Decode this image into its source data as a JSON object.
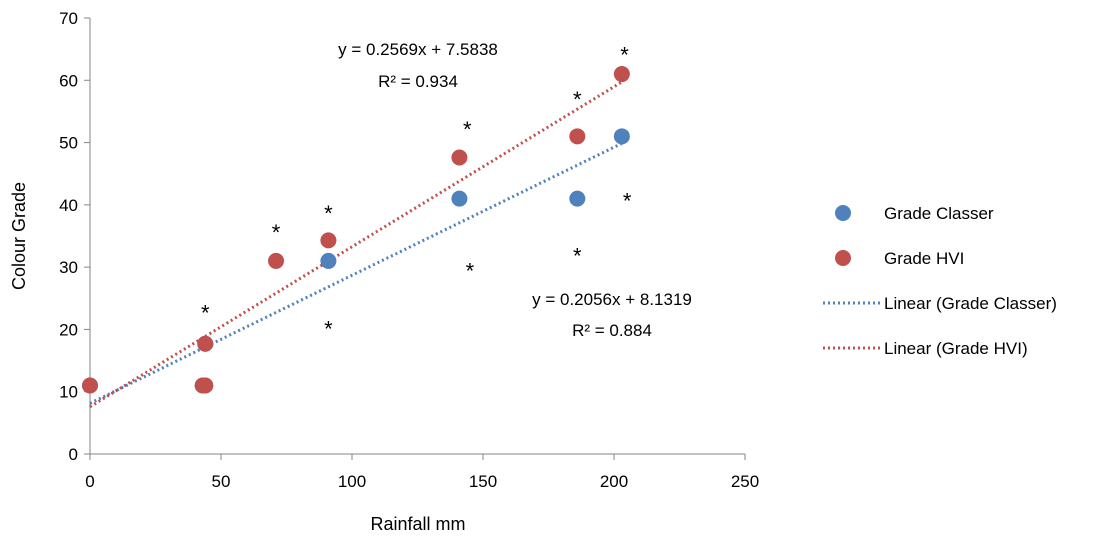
{
  "chart_data": {
    "type": "scatter",
    "xlabel": "Rainfall mm",
    "ylabel": "Colour Grade",
    "xlim": [
      0,
      250
    ],
    "ylim": [
      0,
      70
    ],
    "xticks": [
      0,
      50,
      100,
      150,
      200,
      250
    ],
    "yticks": [
      0,
      10,
      20,
      30,
      40,
      50,
      60,
      70
    ],
    "grid": false,
    "legend_position": "right",
    "series": [
      {
        "name": "Grade Classer",
        "color": "#4F81BD",
        "points": [
          {
            "x": 0,
            "y": 11
          },
          {
            "x": 43,
            "y": 11
          },
          {
            "x": 44,
            "y": 11
          },
          {
            "x": 44,
            "y": 17.7
          },
          {
            "x": 91,
            "y": 31
          },
          {
            "x": 141,
            "y": 41
          },
          {
            "x": 186,
            "y": 41
          },
          {
            "x": 203,
            "y": 51
          }
        ]
      },
      {
        "name": "Grade HVI",
        "color": "#C0504D",
        "points": [
          {
            "x": 0,
            "y": 11
          },
          {
            "x": 43,
            "y": 11
          },
          {
            "x": 44,
            "y": 11
          },
          {
            "x": 44,
            "y": 17.7
          },
          {
            "x": 71,
            "y": 31
          },
          {
            "x": 91,
            "y": 34.3
          },
          {
            "x": 141,
            "y": 47.6
          },
          {
            "x": 186,
            "y": 51
          },
          {
            "x": 203,
            "y": 61
          }
        ]
      }
    ],
    "trendlines": [
      {
        "name": "Linear (Grade Classer)",
        "color": "#4F81BD",
        "slope": 0.2056,
        "intercept": 8.1319,
        "x_range": [
          0,
          203
        ],
        "equation": "y = 0.2056x + 8.1319",
        "r2": "R² = 0.884"
      },
      {
        "name": "Linear (Grade HVI)",
        "color": "#C0504D",
        "slope": 0.2569,
        "intercept": 7.5838,
        "x_range": [
          0,
          203
        ],
        "equation": "y = 0.2569x + 7.5838",
        "r2": "R² = 0.934"
      }
    ],
    "annotations": [
      {
        "text": "*",
        "x": 44,
        "y": 23
      },
      {
        "text": "*",
        "x": 71,
        "y": 36
      },
      {
        "text": "*",
        "x": 91,
        "y": 39
      },
      {
        "text": "*",
        "x": 91,
        "y": 20.5
      },
      {
        "text": "*",
        "x": 144,
        "y": 52.5
      },
      {
        "text": "*",
        "x": 145,
        "y": 29.8
      },
      {
        "text": "*",
        "x": 186,
        "y": 57.3
      },
      {
        "text": "*",
        "x": 186,
        "y": 32.2
      },
      {
        "text": "*",
        "x": 204,
        "y": 64.5
      },
      {
        "text": "*",
        "x": 205,
        "y": 41
      }
    ]
  }
}
